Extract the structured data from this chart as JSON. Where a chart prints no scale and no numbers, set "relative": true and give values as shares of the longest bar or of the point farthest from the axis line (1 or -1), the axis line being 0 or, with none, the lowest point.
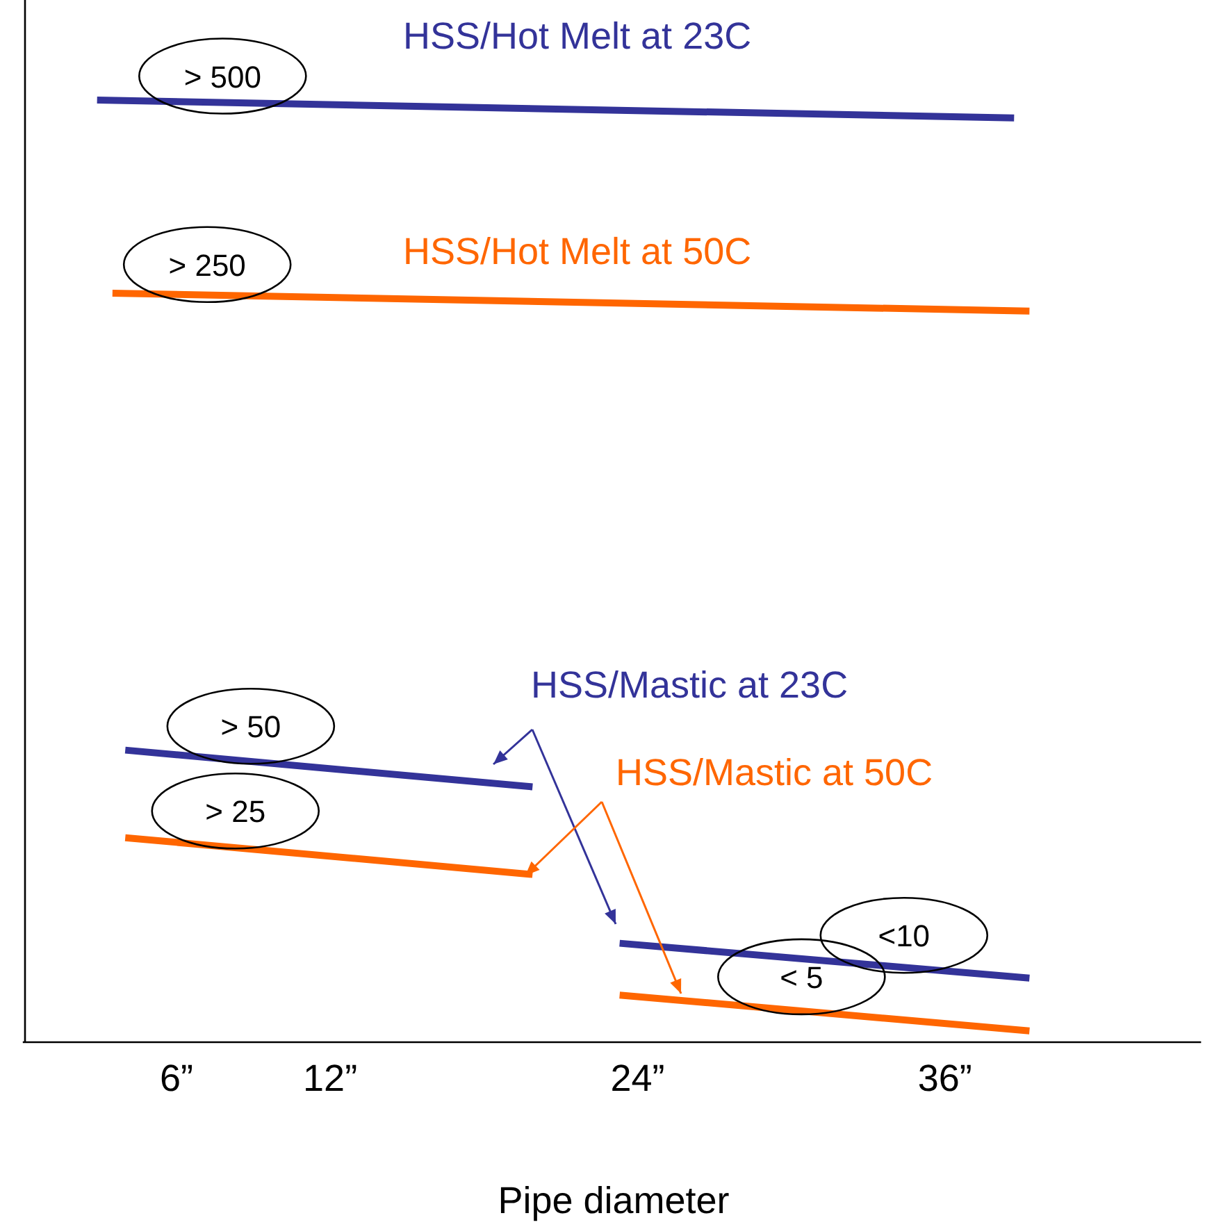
{
  "chart_data": {
    "type": "line",
    "relative": true,
    "xlabel": "Pipe diameter",
    "xlim": [
      0,
      46
    ],
    "xticks": [
      {
        "value": 6,
        "label": "6”"
      },
      {
        "value": 12,
        "label": "12”"
      },
      {
        "value": 24,
        "label": "24”"
      },
      {
        "value": 36,
        "label": "36”"
      }
    ],
    "series": [
      {
        "name": "HSS/Hot Melt at 23C",
        "color": "#333399",
        "x": [
          2.9,
          38.7
        ],
        "values": [
          1.0,
          0.981
        ]
      },
      {
        "name": "HSS/Hot Melt at 50C",
        "color": "#ff6600",
        "x": [
          3.5,
          39.3
        ],
        "values": [
          0.795,
          0.776
        ]
      },
      {
        "name": "HSS/Mastic at 23C",
        "color": "#333399",
        "x": [
          4,
          19.9,
          21.6,
          23.3,
          39.3
        ],
        "values": [
          0.31,
          0.271,
          null,
          0.105,
          0.068
        ]
      },
      {
        "name": "HSS/Mastic  at 50C",
        "color": "#ff6600",
        "x": [
          4,
          19.9,
          21.6,
          23.3,
          39.3
        ],
        "values": [
          0.217,
          0.178,
          null,
          0.05,
          0.012
        ]
      }
    ],
    "annotations": [
      {
        "text": "> 500",
        "x": 7.8,
        "y": 0.99
      },
      {
        "text": "> 250",
        "x": 7.2,
        "y": 0.79
      },
      {
        "text": "> 50",
        "x": 8.9,
        "y": 0.3
      },
      {
        "text": "> 25",
        "x": 8.3,
        "y": 0.21
      },
      {
        "text": "<10",
        "x": 34.4,
        "y": 0.078
      },
      {
        "text": "< 5",
        "x": 30.4,
        "y": 0.034
      }
    ],
    "grid": false,
    "marker": "none",
    "line_style": "solid"
  }
}
